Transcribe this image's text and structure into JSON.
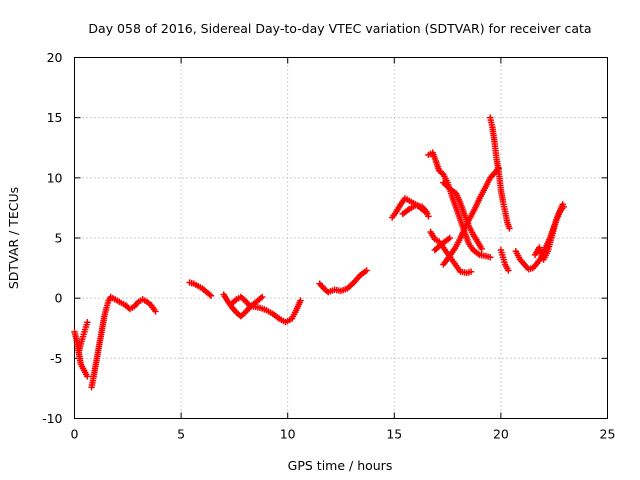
{
  "chart_data": {
    "type": "scatter",
    "title": "Day 058 of 2016, Sidereal Day-to-day VTEC variation (SDTVAR) for receiver cata",
    "xlabel": "GPS time / hours",
    "ylabel": "SDTVAR / TECUs",
    "xlim": [
      0,
      25
    ],
    "ylim": [
      -10,
      20
    ],
    "xticks": [
      "0",
      "5",
      "10",
      "15",
      "20",
      "25"
    ],
    "yticks": [
      "-10",
      "-5",
      "0",
      "5",
      "10",
      "15",
      "20"
    ],
    "grid": true,
    "marker": "+",
    "color": "#ff0000",
    "segments": [
      [
        [
          0.0,
          -2.8
        ],
        [
          0.1,
          -3.5
        ],
        [
          0.2,
          -4.5
        ],
        [
          0.3,
          -5.5
        ],
        [
          0.45,
          -6.0
        ],
        [
          0.6,
          -6.5
        ]
      ],
      [
        [
          0.2,
          -4.5
        ],
        [
          0.3,
          -3.8
        ],
        [
          0.4,
          -3.2
        ],
        [
          0.5,
          -2.6
        ],
        [
          0.6,
          -2.0
        ]
      ],
      [
        [
          0.8,
          -7.4
        ],
        [
          0.9,
          -6.5
        ],
        [
          1.0,
          -5.5
        ],
        [
          1.1,
          -4.5
        ],
        [
          1.2,
          -3.5
        ],
        [
          1.3,
          -2.5
        ],
        [
          1.4,
          -1.5
        ],
        [
          1.5,
          -0.8
        ],
        [
          1.6,
          -0.2
        ],
        [
          1.7,
          0.1
        ],
        [
          1.8,
          0.0
        ],
        [
          2.0,
          -0.2
        ],
        [
          2.2,
          -0.4
        ],
        [
          2.4,
          -0.6
        ],
        [
          2.6,
          -0.9
        ],
        [
          2.8,
          -0.7
        ],
        [
          3.0,
          -0.3
        ],
        [
          3.2,
          -0.1
        ],
        [
          3.4,
          -0.3
        ],
        [
          3.6,
          -0.6
        ],
        [
          3.8,
          -1.1
        ]
      ],
      [
        [
          5.4,
          1.3
        ],
        [
          5.6,
          1.2
        ],
        [
          5.8,
          1.0
        ],
        [
          6.0,
          0.8
        ],
        [
          6.2,
          0.5
        ],
        [
          6.4,
          0.2
        ]
      ],
      [
        [
          7.0,
          0.3
        ],
        [
          7.2,
          -0.3
        ],
        [
          7.4,
          -0.8
        ],
        [
          7.6,
          -1.2
        ],
        [
          7.8,
          -1.5
        ],
        [
          8.0,
          -1.2
        ],
        [
          8.2,
          -0.8
        ],
        [
          8.4,
          -0.5
        ],
        [
          8.6,
          -0.2
        ],
        [
          8.8,
          0.1
        ]
      ],
      [
        [
          7.4,
          -0.4
        ],
        [
          7.6,
          -0.1
        ],
        [
          7.8,
          0.1
        ],
        [
          8.0,
          -0.2
        ],
        [
          8.2,
          -0.6
        ],
        [
          8.4,
          -0.7
        ],
        [
          8.7,
          -0.8
        ],
        [
          9.0,
          -1.0
        ],
        [
          9.3,
          -1.3
        ],
        [
          9.6,
          -1.7
        ],
        [
          9.9,
          -2.0
        ],
        [
          10.2,
          -1.7
        ],
        [
          10.4,
          -1.0
        ],
        [
          10.6,
          -0.2
        ]
      ],
      [
        [
          11.5,
          1.2
        ],
        [
          11.7,
          0.8
        ],
        [
          11.9,
          0.5
        ],
        [
          12.2,
          0.7
        ],
        [
          12.5,
          0.6
        ],
        [
          12.8,
          0.8
        ],
        [
          13.1,
          1.3
        ],
        [
          13.4,
          1.9
        ],
        [
          13.7,
          2.3
        ]
      ],
      [
        [
          14.9,
          6.7
        ],
        [
          15.1,
          7.2
        ],
        [
          15.3,
          7.8
        ],
        [
          15.5,
          8.3
        ],
        [
          15.7,
          8.1
        ],
        [
          15.9,
          7.9
        ],
        [
          16.1,
          7.7
        ],
        [
          16.3,
          7.4
        ],
        [
          16.5,
          7.1
        ]
      ],
      [
        [
          15.4,
          7.0
        ],
        [
          15.7,
          7.4
        ],
        [
          16.0,
          7.7
        ],
        [
          16.3,
          7.6
        ],
        [
          16.5,
          7.2
        ],
        [
          16.6,
          6.8
        ]
      ],
      [
        [
          16.6,
          11.9
        ],
        [
          16.8,
          12.1
        ],
        [
          16.95,
          11.4
        ],
        [
          17.1,
          10.6
        ],
        [
          17.3,
          10.3
        ],
        [
          17.5,
          9.6
        ],
        [
          17.7,
          8.5
        ],
        [
          17.9,
          7.5
        ],
        [
          18.1,
          6.5
        ],
        [
          18.3,
          5.5
        ],
        [
          18.5,
          4.5
        ],
        [
          18.7,
          4.0
        ],
        [
          19.0,
          3.6
        ],
        [
          19.3,
          3.5
        ],
        [
          19.5,
          3.4
        ]
      ],
      [
        [
          16.7,
          5.5
        ],
        [
          16.9,
          4.9
        ],
        [
          17.1,
          4.7
        ],
        [
          17.3,
          4.2
        ],
        [
          17.5,
          3.7
        ],
        [
          17.7,
          3.2
        ],
        [
          17.9,
          2.7
        ],
        [
          18.1,
          2.2
        ],
        [
          18.4,
          2.1
        ],
        [
          18.6,
          2.2
        ]
      ],
      [
        [
          17.3,
          2.8
        ],
        [
          17.6,
          3.5
        ],
        [
          17.9,
          4.3
        ],
        [
          18.1,
          5.0
        ],
        [
          18.3,
          5.8
        ],
        [
          18.5,
          6.5
        ],
        [
          18.8,
          7.5
        ],
        [
          19.0,
          8.3
        ],
        [
          19.3,
          9.3
        ],
        [
          19.5,
          10.0
        ],
        [
          19.7,
          10.4
        ],
        [
          19.9,
          10.8
        ]
      ],
      [
        [
          17.3,
          9.6
        ],
        [
          17.6,
          9.1
        ],
        [
          17.9,
          8.7
        ],
        [
          18.1,
          7.9
        ],
        [
          18.3,
          6.9
        ],
        [
          18.5,
          6.0
        ],
        [
          18.7,
          5.3
        ],
        [
          18.9,
          4.7
        ],
        [
          19.1,
          4.1
        ]
      ],
      [
        [
          16.9,
          4.0
        ],
        [
          17.1,
          4.3
        ],
        [
          17.3,
          4.6
        ],
        [
          17.6,
          5.0
        ]
      ],
      [
        [
          19.5,
          15.0
        ],
        [
          19.6,
          14.2
        ],
        [
          19.7,
          13.0
        ],
        [
          19.8,
          11.5
        ],
        [
          19.9,
          10.5
        ],
        [
          20.0,
          9.0
        ],
        [
          20.1,
          8.0
        ],
        [
          20.2,
          7.2
        ],
        [
          20.3,
          6.3
        ],
        [
          20.4,
          5.8
        ]
      ],
      [
        [
          20.0,
          4.0
        ],
        [
          20.1,
          3.4
        ],
        [
          20.2,
          2.8
        ],
        [
          20.35,
          2.3
        ]
      ],
      [
        [
          20.7,
          3.9
        ],
        [
          20.9,
          3.2
        ],
        [
          21.1,
          2.8
        ],
        [
          21.3,
          2.4
        ],
        [
          21.5,
          2.5
        ],
        [
          21.7,
          2.9
        ],
        [
          21.9,
          3.4
        ],
        [
          22.1,
          4.2
        ],
        [
          22.3,
          5.0
        ],
        [
          22.5,
          6.0
        ],
        [
          22.7,
          7.0
        ],
        [
          22.9,
          7.8
        ]
      ],
      [
        [
          21.6,
          3.6
        ],
        [
          21.8,
          4.2
        ],
        [
          22.0,
          3.2
        ],
        [
          22.2,
          3.9
        ],
        [
          22.4,
          5.2
        ],
        [
          22.6,
          6.5
        ],
        [
          22.8,
          7.3
        ],
        [
          22.95,
          7.6
        ]
      ]
    ]
  }
}
